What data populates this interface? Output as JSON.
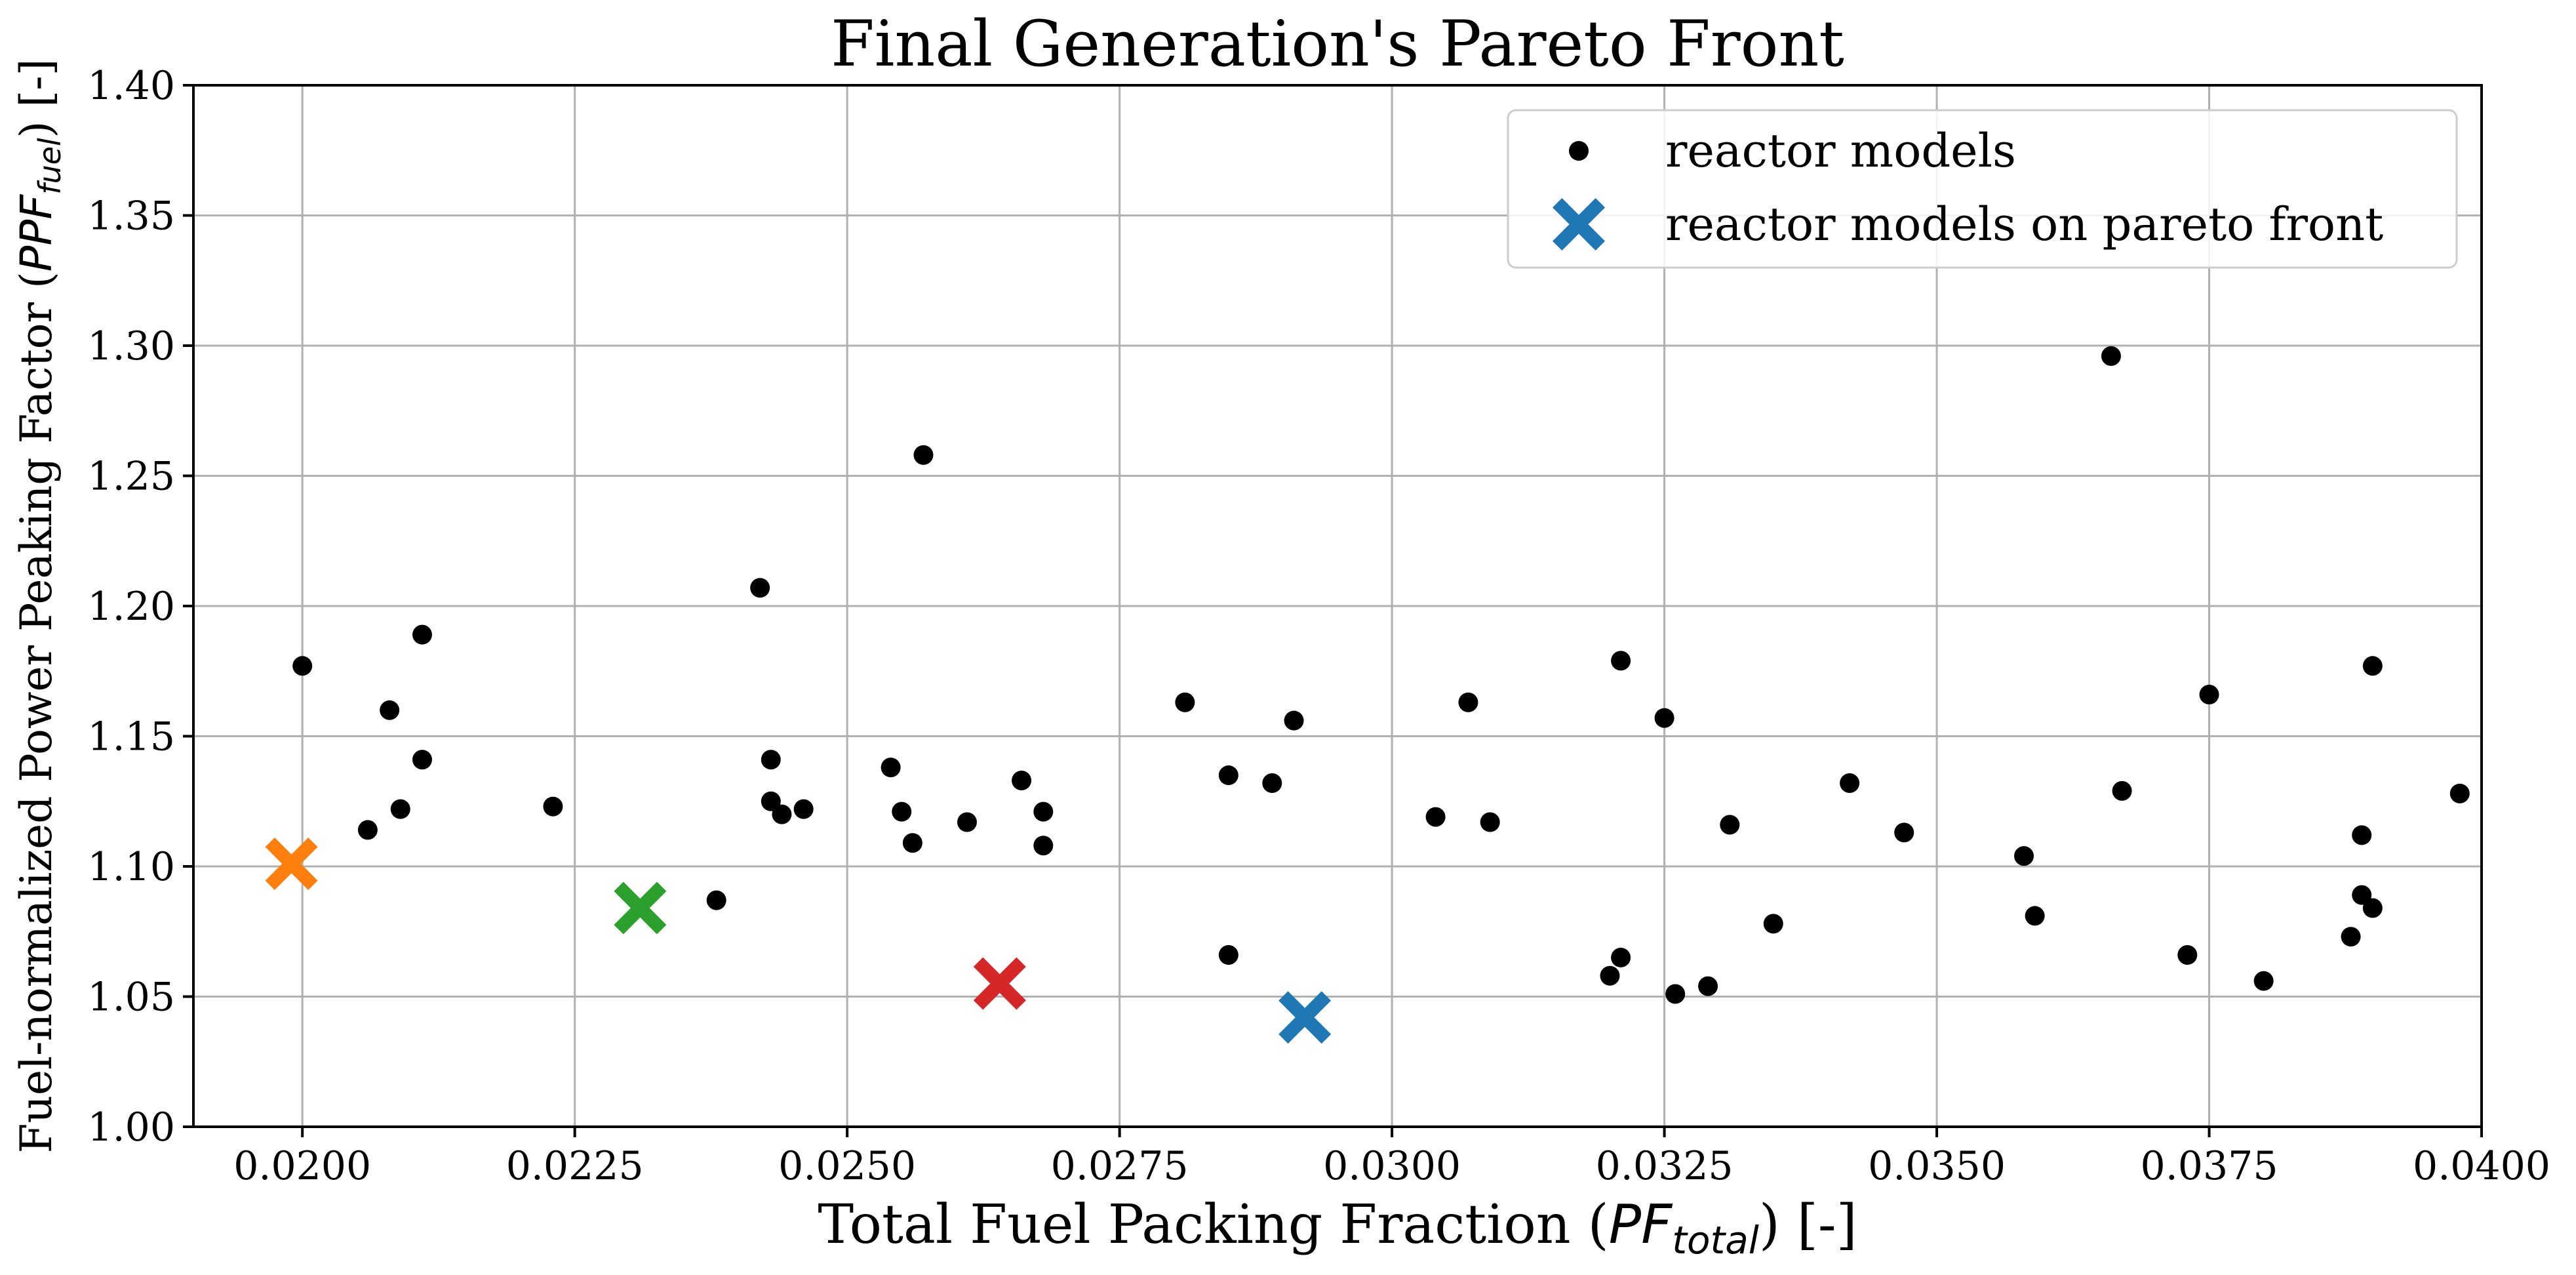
{
  "chart_data": {
    "type": "scatter",
    "title": "Final Generation's Pareto Front",
    "xlabel": "Total Fuel Packing Fraction (PF_total) [-]",
    "xlabel_parts": {
      "pre": "Total Fuel Packing Fraction (",
      "var": "PF",
      "sub": "total",
      "post": ") [-]"
    },
    "ylabel": "Fuel-normalized Power Peaking Factor (PPF_fuel) [-]",
    "ylabel_parts": {
      "pre": "Fuel-normalized Power Peaking Factor (",
      "var": "PPF",
      "sub": "fuel",
      "post": ") [-]"
    },
    "xlim": [
      0.019,
      0.04
    ],
    "ylim": [
      1.0,
      1.4
    ],
    "x_ticks": [
      "0.0200",
      "0.0225",
      "0.0250",
      "0.0275",
      "0.0300",
      "0.0325",
      "0.0350",
      "0.0375",
      "0.0400"
    ],
    "x_tick_values": [
      0.02,
      0.0225,
      0.025,
      0.0275,
      0.03,
      0.0325,
      0.035,
      0.0375,
      0.04
    ],
    "y_ticks": [
      "1.00",
      "1.05",
      "1.10",
      "1.15",
      "1.20",
      "1.25",
      "1.30",
      "1.35",
      "1.40"
    ],
    "y_tick_values": [
      1.0,
      1.05,
      1.1,
      1.15,
      1.2,
      1.25,
      1.3,
      1.35,
      1.4
    ],
    "grid": true,
    "legend_position": "top-right",
    "series": [
      {
        "name": "reactor models",
        "marker": "dot",
        "color": "#000000",
        "points": [
          [
            0.02,
            1.177
          ],
          [
            0.0206,
            1.114
          ],
          [
            0.0208,
            1.16
          ],
          [
            0.0209,
            1.122
          ],
          [
            0.0211,
            1.189
          ],
          [
            0.0211,
            1.141
          ],
          [
            0.0223,
            1.123
          ],
          [
            0.0238,
            1.087
          ],
          [
            0.0242,
            1.207
          ],
          [
            0.0243,
            1.141
          ],
          [
            0.0243,
            1.125
          ],
          [
            0.0244,
            1.12
          ],
          [
            0.0246,
            1.122
          ],
          [
            0.0254,
            1.138
          ],
          [
            0.0255,
            1.121
          ],
          [
            0.0256,
            1.109
          ],
          [
            0.0257,
            1.258
          ],
          [
            0.0261,
            1.117
          ],
          [
            0.0266,
            1.133
          ],
          [
            0.0268,
            1.121
          ],
          [
            0.0268,
            1.108
          ],
          [
            0.0281,
            1.163
          ],
          [
            0.0285,
            1.135
          ],
          [
            0.0285,
            1.066
          ],
          [
            0.0289,
            1.132
          ],
          [
            0.0291,
            1.156
          ],
          [
            0.0304,
            1.119
          ],
          [
            0.0307,
            1.163
          ],
          [
            0.0309,
            1.117
          ],
          [
            0.032,
            1.058
          ],
          [
            0.0321,
            1.065
          ],
          [
            0.0321,
            1.179
          ],
          [
            0.0325,
            1.157
          ],
          [
            0.0326,
            1.051
          ],
          [
            0.0329,
            1.054
          ],
          [
            0.0331,
            1.116
          ],
          [
            0.0335,
            1.078
          ],
          [
            0.0342,
            1.132
          ],
          [
            0.0347,
            1.113
          ],
          [
            0.0358,
            1.104
          ],
          [
            0.0359,
            1.081
          ],
          [
            0.0366,
            1.296
          ],
          [
            0.0367,
            1.129
          ],
          [
            0.0373,
            1.066
          ],
          [
            0.0375,
            1.166
          ],
          [
            0.038,
            1.056
          ],
          [
            0.0388,
            1.073
          ],
          [
            0.0389,
            1.112
          ],
          [
            0.0389,
            1.089
          ],
          [
            0.039,
            1.084
          ],
          [
            0.039,
            1.177
          ],
          [
            0.0398,
            1.128
          ]
        ]
      },
      {
        "name": "reactor models on pareto front",
        "marker": "x",
        "color": "#1f77b4",
        "points": [
          [
            0.0292,
            1.042
          ]
        ]
      },
      {
        "marker": "x",
        "color": "#ff7f0e",
        "points": [
          [
            0.0199,
            1.101
          ]
        ]
      },
      {
        "marker": "x",
        "color": "#2ca02c",
        "points": [
          [
            0.0231,
            1.084
          ]
        ]
      },
      {
        "marker": "x",
        "color": "#d62728",
        "points": [
          [
            0.0264,
            1.055
          ]
        ]
      }
    ],
    "legend": [
      {
        "label": "reactor models",
        "marker": "dot",
        "color": "#000000"
      },
      {
        "label": "reactor models on pareto front",
        "marker": "x",
        "color": "#1f77b4"
      }
    ]
  }
}
